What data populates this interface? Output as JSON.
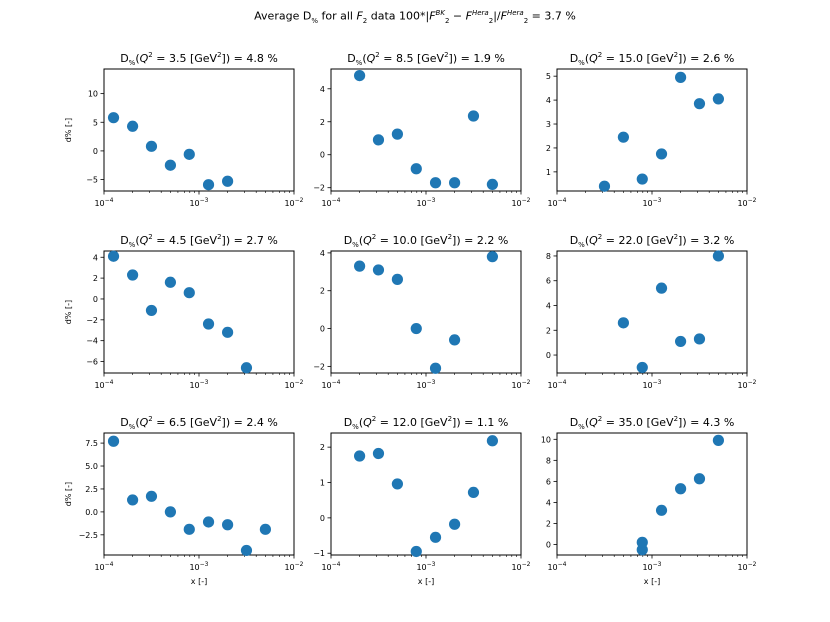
{
  "suptitle": {
    "prefix": "Average D",
    "pct_sub": "%",
    "for_text": " for all ",
    "f_symbol": "F",
    "f_sub": "2",
    "data_text": " data 100*|",
    "bk_sup": "BK",
    "minus": " − ",
    "hera_sup": "Hera",
    "sep": "|/",
    "tail": " = 3.7 %"
  },
  "chart_data": [
    {
      "type": "scatter",
      "title": "D%(Q² = 3.5 [GeV²]) = 4.8 %",
      "q2": "3.5",
      "davg": "4.8",
      "xlabel": "",
      "ylabel": "d% [-]",
      "xlim": [
        0.0001,
        0.01
      ],
      "ylim": [
        -7,
        14.3
      ],
      "yticks": [
        10,
        5,
        0,
        -5
      ],
      "ytick_labels": [
        "10",
        "5",
        "0",
        "−5"
      ],
      "x": [
        0.000126,
        0.0002,
        0.000316,
        0.0005,
        0.00079,
        0.00126,
        0.002
      ],
      "y": [
        5.8,
        4.3,
        0.8,
        -2.5,
        -0.6,
        -5.9,
        -5.3
      ]
    },
    {
      "type": "scatter",
      "title": "D%(Q² = 8.5 [GeV²]) = 1.9 %",
      "q2": "8.5",
      "davg": "1.9",
      "xlabel": "",
      "ylabel": "",
      "xlim": [
        0.0001,
        0.01
      ],
      "ylim": [
        -2.2,
        5.2
      ],
      "yticks": [
        4,
        2,
        0,
        -2
      ],
      "ytick_labels": [
        "4",
        "2",
        "0",
        "−2"
      ],
      "x": [
        0.0002,
        0.000316,
        0.0005,
        0.00079,
        0.00126,
        0.002,
        0.00316,
        0.005
      ],
      "y": [
        4.8,
        0.9,
        1.25,
        -0.85,
        -1.7,
        -1.7,
        2.35,
        -1.8
      ]
    },
    {
      "type": "scatter",
      "title": "D%(Q² = 15.0 [GeV²]) = 2.6 %",
      "q2": "15.0",
      "davg": "2.6",
      "xlabel": "",
      "ylabel": "",
      "xlim": [
        0.0001,
        0.01
      ],
      "ylim": [
        0.2,
        5.3
      ],
      "yticks": [
        5,
        4,
        3,
        2,
        1
      ],
      "ytick_labels": [
        "5",
        "4",
        "3",
        "2",
        "1"
      ],
      "x": [
        0.000316,
        0.0005,
        0.00079,
        0.00126,
        0.002,
        0.00316,
        0.005
      ],
      "y": [
        0.4,
        2.45,
        0.7,
        1.75,
        4.95,
        3.85,
        4.05
      ]
    },
    {
      "type": "scatter",
      "title": "D%(Q² = 4.5 [GeV²]) = 2.7 %",
      "q2": "4.5",
      "davg": "2.7",
      "xlabel": "",
      "ylabel": "d% [-]",
      "xlim": [
        0.0001,
        0.01
      ],
      "ylim": [
        -7.1,
        4.6
      ],
      "yticks": [
        4,
        2,
        0,
        -2,
        -4,
        -6
      ],
      "ytick_labels": [
        "4",
        "2",
        "0",
        "−2",
        "−4",
        "−6"
      ],
      "x": [
        0.000126,
        0.0002,
        0.000316,
        0.0005,
        0.00079,
        0.00126,
        0.002,
        0.00316
      ],
      "y": [
        4.1,
        2.3,
        -1.1,
        1.6,
        0.6,
        -2.4,
        -3.2,
        -6.6
      ]
    },
    {
      "type": "scatter",
      "title": "D%(Q² = 10.0 [GeV²]) = 2.2 %",
      "q2": "10.0",
      "davg": "2.2",
      "xlabel": "",
      "ylabel": "",
      "xlim": [
        0.0001,
        0.01
      ],
      "ylim": [
        -2.35,
        4.1
      ],
      "yticks": [
        4,
        2,
        0,
        -2
      ],
      "ytick_labels": [
        "4",
        "2",
        "0",
        "−2"
      ],
      "x": [
        0.0002,
        0.000316,
        0.0005,
        0.00079,
        0.00126,
        0.002,
        0.005
      ],
      "y": [
        3.3,
        3.1,
        2.6,
        0,
        -2.1,
        -0.6,
        3.8
      ]
    },
    {
      "type": "scatter",
      "title": "D%(Q² = 22.0 [GeV²]) = 3.2 %",
      "q2": "22.0",
      "davg": "3.2",
      "xlabel": "",
      "ylabel": "",
      "xlim": [
        0.0001,
        0.01
      ],
      "ylim": [
        -1.45,
        8.4
      ],
      "yticks": [
        8,
        6,
        4,
        2,
        0
      ],
      "ytick_labels": [
        "8",
        "6",
        "4",
        "2",
        "0"
      ],
      "x": [
        0.0005,
        0.00079,
        0.00126,
        0.002,
        0.00316,
        0.005
      ],
      "y": [
        2.6,
        -1.0,
        5.4,
        1.1,
        1.3,
        8.0
      ]
    },
    {
      "type": "scatter",
      "title": "D%(Q² = 6.5 [GeV²]) = 2.4 %",
      "q2": "6.5",
      "davg": "2.4",
      "xlabel": "x [-]",
      "ylabel": "d% [-]",
      "xlim": [
        0.0001,
        0.01
      ],
      "ylim": [
        -4.7,
        8.6
      ],
      "yticks": [
        7.5,
        5,
        2.5,
        0,
        -2.5
      ],
      "ytick_labels": [
        "7.5",
        "5.0",
        "2.5",
        "0.0",
        "−2.5"
      ],
      "x": [
        0.000126,
        0.0002,
        0.000316,
        0.0005,
        0.00079,
        0.00126,
        0.002,
        0.00316,
        0.005
      ],
      "y": [
        7.7,
        1.3,
        1.7,
        0,
        -1.9,
        -1.1,
        -1.4,
        -4.2,
        -1.9
      ]
    },
    {
      "type": "scatter",
      "title": "D%(Q² = 12.0 [GeV²]) = 1.1 %",
      "q2": "12.0",
      "davg": "1.1",
      "xlabel": "x [-]",
      "ylabel": "",
      "xlim": [
        0.0001,
        0.01
      ],
      "ylim": [
        -1.05,
        2.4
      ],
      "yticks": [
        2,
        1,
        0,
        -1
      ],
      "ytick_labels": [
        "2",
        "1",
        "0",
        "−1"
      ],
      "x": [
        0.0002,
        0.000316,
        0.0005,
        0.00079,
        0.00126,
        0.002,
        0.00316,
        0.005
      ],
      "y": [
        1.75,
        1.82,
        0.96,
        -0.95,
        -0.55,
        -0.18,
        0.72,
        2.18
      ]
    },
    {
      "type": "scatter",
      "title": "D%(Q² = 35.0 [GeV²]) = 4.3 %",
      "q2": "35.0",
      "davg": "4.3",
      "xlabel": "x [-]",
      "ylabel": "",
      "xlim": [
        0.0001,
        0.01
      ],
      "ylim": [
        -1.0,
        10.6
      ],
      "yticks": [
        10,
        8,
        6,
        4,
        2,
        0
      ],
      "ytick_labels": [
        "10",
        "8",
        "6",
        "4",
        "2",
        "0"
      ],
      "x": [
        0.00079,
        0.00079,
        0.00126,
        0.002,
        0.00316,
        0.005
      ],
      "y": [
        -0.5,
        0.2,
        3.25,
        5.3,
        6.25,
        9.9
      ]
    }
  ],
  "xtick_labels": {
    "base": "10",
    "exps": [
      "−4",
      "−3",
      "−2"
    ]
  },
  "title_parts": {
    "d": "D",
    "pct": "%",
    "q": "Q",
    "two": "2",
    "eq": " = ",
    "gev_open": " [GeV",
    "gev_close": "]) = ",
    "pct_unit": " %"
  }
}
